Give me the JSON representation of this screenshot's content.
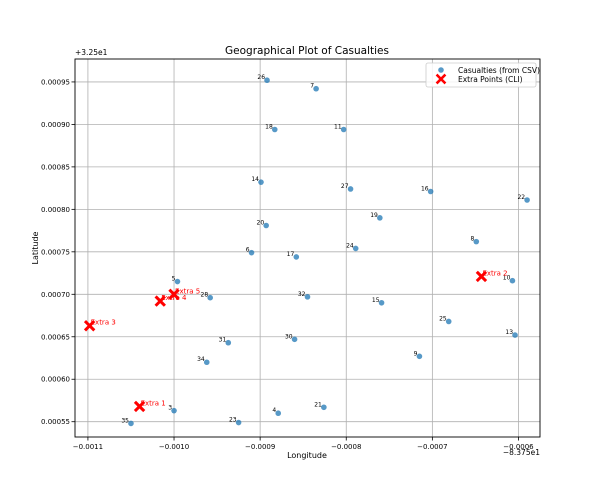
{
  "chart_data": {
    "type": "scatter",
    "title": "Geographical Plot of Casualties",
    "xlabel": "Longitude",
    "ylabel": "Latitude",
    "x_offset_label": "−8.375e1",
    "y_offset_label": "+3.25e1",
    "x_offset": -83.75,
    "y_offset": 32.5,
    "xlim": [
      -0.001115,
      -0.000575
    ],
    "ylim": [
      0.000532,
      0.000977
    ],
    "x_ticks": [
      {
        "value": -0.0011,
        "label": "−0.0011"
      },
      {
        "value": -0.001,
        "label": "−0.0010"
      },
      {
        "value": -0.0009,
        "label": "−0.0009"
      },
      {
        "value": -0.0008,
        "label": "−0.0008"
      },
      {
        "value": -0.0007,
        "label": "−0.0007"
      },
      {
        "value": -0.0006,
        "label": "−0.0006"
      }
    ],
    "y_ticks": [
      {
        "value": 0.00055,
        "label": "0.00055"
      },
      {
        "value": 0.0006,
        "label": "0.00060"
      },
      {
        "value": 0.00065,
        "label": "0.00065"
      },
      {
        "value": 0.0007,
        "label": "0.00070"
      },
      {
        "value": 0.00075,
        "label": "0.00075"
      },
      {
        "value": 0.0008,
        "label": "0.00080"
      },
      {
        "value": 0.00085,
        "label": "0.00085"
      },
      {
        "value": 0.0009,
        "label": "0.00090"
      },
      {
        "value": 0.00095,
        "label": "0.00095"
      }
    ],
    "grid": true,
    "legend_position": "top-right",
    "series": [
      {
        "name": "Casualties (from CSV)",
        "color": "#1f77b4",
        "marker": "circle",
        "points": [
          {
            "label": "26",
            "x": -0.000892,
            "y": 0.000952
          },
          {
            "label": "7",
            "x": -0.000835,
            "y": 0.000942
          },
          {
            "label": "18",
            "x": -0.000883,
            "y": 0.000894
          },
          {
            "label": "11",
            "x": -0.000803,
            "y": 0.000894
          },
          {
            "label": "14",
            "x": -0.000899,
            "y": 0.000832
          },
          {
            "label": "27",
            "x": -0.000795,
            "y": 0.000824
          },
          {
            "label": "16",
            "x": -0.000702,
            "y": 0.000821
          },
          {
            "label": "22",
            "x": -0.00059,
            "y": 0.000811
          },
          {
            "label": "19",
            "x": -0.000761,
            "y": 0.00079
          },
          {
            "label": "20",
            "x": -0.000893,
            "y": 0.000781
          },
          {
            "label": "8",
            "x": -0.000649,
            "y": 0.000762
          },
          {
            "label": "24",
            "x": -0.000789,
            "y": 0.000754
          },
          {
            "label": "6",
            "x": -0.00091,
            "y": 0.000749
          },
          {
            "label": "17",
            "x": -0.000858,
            "y": 0.000744
          },
          {
            "label": "10",
            "x": -0.000607,
            "y": 0.000716
          },
          {
            "label": "5",
            "x": -0.000996,
            "y": 0.000715
          },
          {
            "label": "28",
            "x": -0.000958,
            "y": 0.000696
          },
          {
            "label": "32",
            "x": -0.000845,
            "y": 0.000697
          },
          {
            "label": "15",
            "x": -0.000759,
            "y": 0.00069
          },
          {
            "label": "25",
            "x": -0.000681,
            "y": 0.000668
          },
          {
            "label": "13",
            "x": -0.000604,
            "y": 0.000652
          },
          {
            "label": "31",
            "x": -0.000937,
            "y": 0.000643
          },
          {
            "label": "30",
            "x": -0.00086,
            "y": 0.000647
          },
          {
            "label": "9",
            "x": -0.000715,
            "y": 0.000627
          },
          {
            "label": "34",
            "x": -0.000962,
            "y": 0.00062
          },
          {
            "label": "3",
            "x": -0.001,
            "y": 0.000563
          },
          {
            "label": "21",
            "x": -0.000826,
            "y": 0.000567
          },
          {
            "label": "4",
            "x": -0.000879,
            "y": 0.00056
          },
          {
            "label": "23",
            "x": -0.000925,
            "y": 0.000549
          },
          {
            "label": "35",
            "x": -0.00105,
            "y": 0.000548
          }
        ]
      },
      {
        "name": "Extra Points (CLI)",
        "color": "#ff0000",
        "marker": "X",
        "points": [
          {
            "label": "Extra 2",
            "x": -0.000643,
            "y": 0.000721
          },
          {
            "label": "Extra 5",
            "x": -0.001,
            "y": 0.0007
          },
          {
            "label": "Extra 4",
            "x": -0.001016,
            "y": 0.000692
          },
          {
            "label": "Extra 3",
            "x": -0.001098,
            "y": 0.000663
          },
          {
            "label": "Extra 1",
            "x": -0.00104,
            "y": 0.000568
          }
        ]
      }
    ]
  }
}
